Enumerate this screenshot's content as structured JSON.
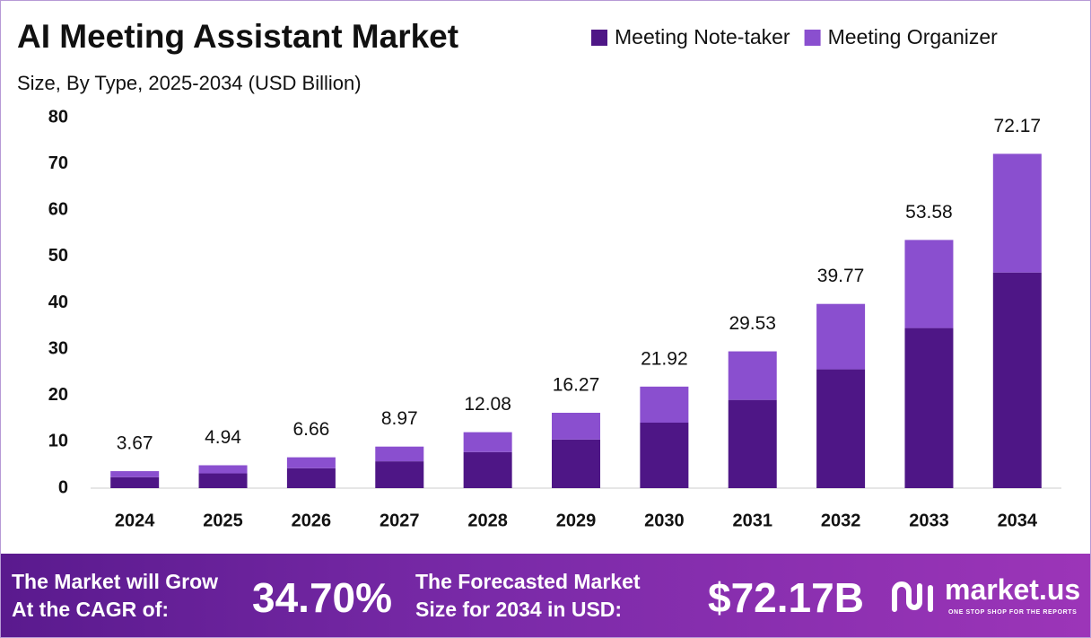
{
  "chart_data": {
    "type": "stacked_bar",
    "title": "AI Meeting Assistant Market",
    "subtitle": "Size, By Type, 2025-2034 (USD Billion)",
    "categories": [
      "2024",
      "2025",
      "2026",
      "2027",
      "2028",
      "2029",
      "2030",
      "2031",
      "2032",
      "2033",
      "2034"
    ],
    "series": [
      {
        "name": "Meeting Note-taker",
        "color": "#4e1686",
        "values": [
          2.37,
          3.19,
          4.3,
          5.79,
          7.79,
          10.49,
          14.14,
          19.05,
          25.65,
          34.56,
          46.55
        ]
      },
      {
        "name": "Meeting Organizer",
        "color": "#8a4fcf",
        "values": [
          1.3,
          1.75,
          2.36,
          3.18,
          4.29,
          5.78,
          7.78,
          10.48,
          14.12,
          19.02,
          25.62
        ]
      }
    ],
    "totals": [
      3.67,
      4.94,
      6.66,
      8.97,
      12.08,
      16.27,
      21.92,
      29.53,
      39.77,
      53.58,
      72.17
    ],
    "ylim": [
      0,
      80
    ],
    "yticks": [
      0,
      10,
      20,
      30,
      40,
      50,
      60,
      70,
      80
    ],
    "grid": false,
    "legend": "top-right"
  },
  "footer": {
    "cagr_text_1": "The Market will Grow",
    "cagr_text_2": "At the CAGR of:",
    "cagr_value": "34.70%",
    "size_text_1": "The Forecasted Market",
    "size_text_2": "Size for 2034 in USD:",
    "size_value": "$72.17B",
    "brand": "market.us",
    "tagline": "ONE STOP SHOP FOR THE REPORTS"
  }
}
